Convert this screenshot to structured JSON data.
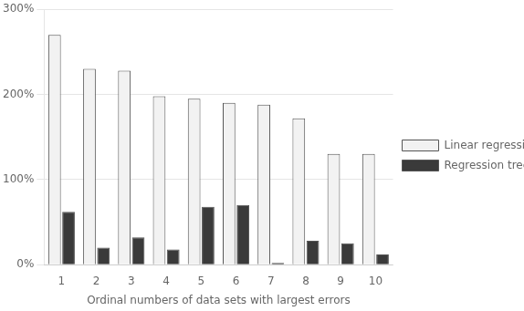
{
  "chart_data": {
    "type": "bar",
    "x_label": "Ordinal numbers of data sets with largest errors",
    "categories": [
      1,
      2,
      3,
      4,
      5,
      6,
      7,
      8,
      9,
      10
    ],
    "series": [
      {
        "name": "Linear regression",
        "color": "#f2f2f2",
        "values": [
          270,
          230,
          228,
          198,
          195,
          190,
          188,
          172,
          130,
          130
        ]
      },
      {
        "name": "Regression tree",
        "color": "#3a3a3a",
        "values": [
          62,
          20,
          32,
          18,
          68,
          70,
          2,
          28,
          25,
          12
        ]
      }
    ],
    "ylim": [
      0,
      300
    ],
    "yticks": [
      {
        "value": 0,
        "label": "0%"
      },
      {
        "value": 100,
        "label": "100%"
      },
      {
        "value": 200,
        "label": "200%"
      },
      {
        "value": 300,
        "label": "300%"
      }
    ],
    "grid": true,
    "legend": "right"
  }
}
